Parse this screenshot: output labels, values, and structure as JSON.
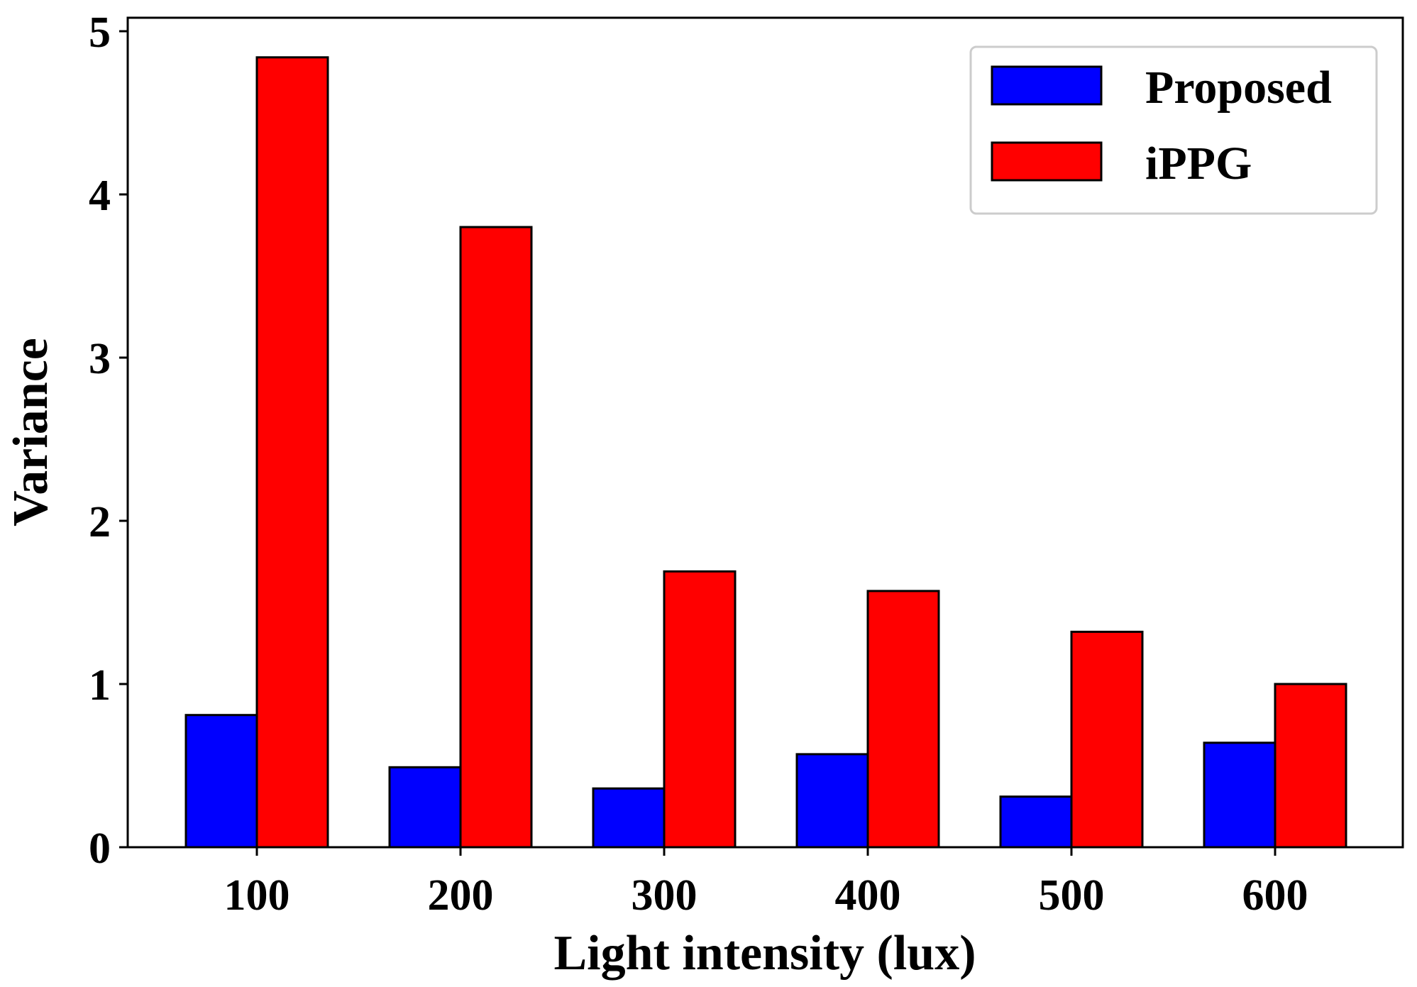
{
  "chart_data": {
    "type": "bar",
    "title": "",
    "xlabel": "Light intensity (lux)",
    "ylabel": "Variance",
    "categories": [
      "100",
      "200",
      "300",
      "400",
      "500",
      "600"
    ],
    "series": [
      {
        "name": "Proposed",
        "color": "#0000ff",
        "values": [
          0.81,
          0.49,
          0.36,
          0.57,
          0.31,
          0.64
        ]
      },
      {
        "name": "iPPG",
        "color": "#ff0000",
        "values": [
          4.84,
          3.8,
          1.69,
          1.57,
          1.32,
          1.0
        ]
      }
    ],
    "ylim": [
      0,
      5.1
    ],
    "yticks": [
      "0",
      "1",
      "2",
      "3",
      "4",
      "5"
    ],
    "grid": false,
    "legend_position": "top-right"
  }
}
